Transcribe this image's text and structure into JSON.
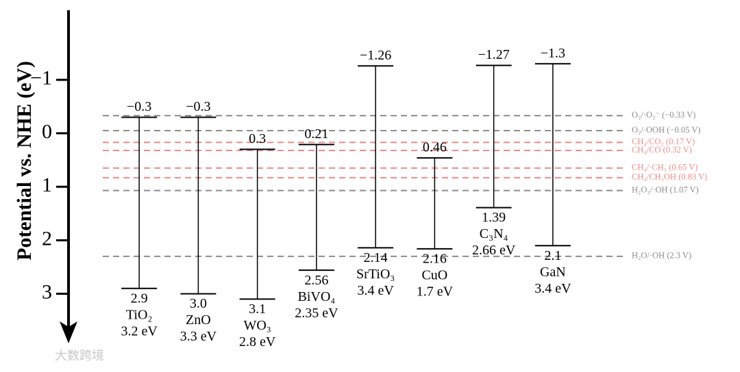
{
  "chart_data": {
    "type": "band",
    "y_label": "Potential vs. NHE (eV)",
    "ylim": [
      -2.3,
      3.9
    ],
    "inverted": true,
    "yticks": [
      {
        "value": -1,
        "label": "−1"
      },
      0,
      1,
      2,
      3
    ],
    "categories": [
      "TiO₂",
      "ZnO",
      "WO₃",
      "BiVO₄",
      "SrTiO₃",
      "CuO",
      "C₃N₄",
      "GaN"
    ],
    "cb": [
      -0.3,
      -0.3,
      0.3,
      0.21,
      -1.26,
      0.46,
      -1.27,
      -1.3
    ],
    "cb_labels": [
      "−0.3",
      "−0.3",
      "0.3",
      "0.21",
      "−1.26",
      "0.46",
      "−1.27",
      "−1.3"
    ],
    "vb": [
      2.9,
      3.0,
      3.1,
      2.56,
      2.14,
      2.16,
      1.39,
      2.1
    ],
    "vb_labels": [
      "2.9",
      "3.0",
      "3.1",
      "2.56",
      "2.14",
      "2.16",
      "1.39",
      "2.1"
    ],
    "band_gaps": [
      "3.2 eV",
      "3.3 eV",
      "2.8 eV",
      "2.35 eV",
      "3.4 eV",
      "1.7 eV",
      "2.66 eV",
      "3.4  eV"
    ],
    "color": "#000000",
    "references": [
      {
        "label": "O₂/·O₂⁻ (−0.33 V)",
        "value": -0.33,
        "color": "#8c8c8c"
      },
      {
        "label": "O₂/·OOH (−0.05 V)",
        "value": -0.05,
        "color": "#8c8c8c"
      },
      {
        "label": "CH₄/CO₂ (0.17 V)",
        "value": 0.17,
        "color": "#ec8c86"
      },
      {
        "label": "CH₄/CO (0.32 V)",
        "value": 0.32,
        "color": "#ec8c86"
      },
      {
        "label": "CH₄/CH₃OH (0.83 V)",
        "value": 0.83,
        "color": "#ec8c86"
      },
      {
        "label": "CH₄/·CH₃ (0.65 V)",
        "value": 0.65,
        "color": "#ec8c86"
      },
      {
        "label": "H₂O₂/·OH (1.07 V)",
        "value": 1.07,
        "color": "#8c8c8c"
      },
      {
        "label": "H₂O/·OH (2.3 V)",
        "value": 2.3,
        "color": "#8c8c8c"
      }
    ],
    "watermark": "大数跨境"
  }
}
